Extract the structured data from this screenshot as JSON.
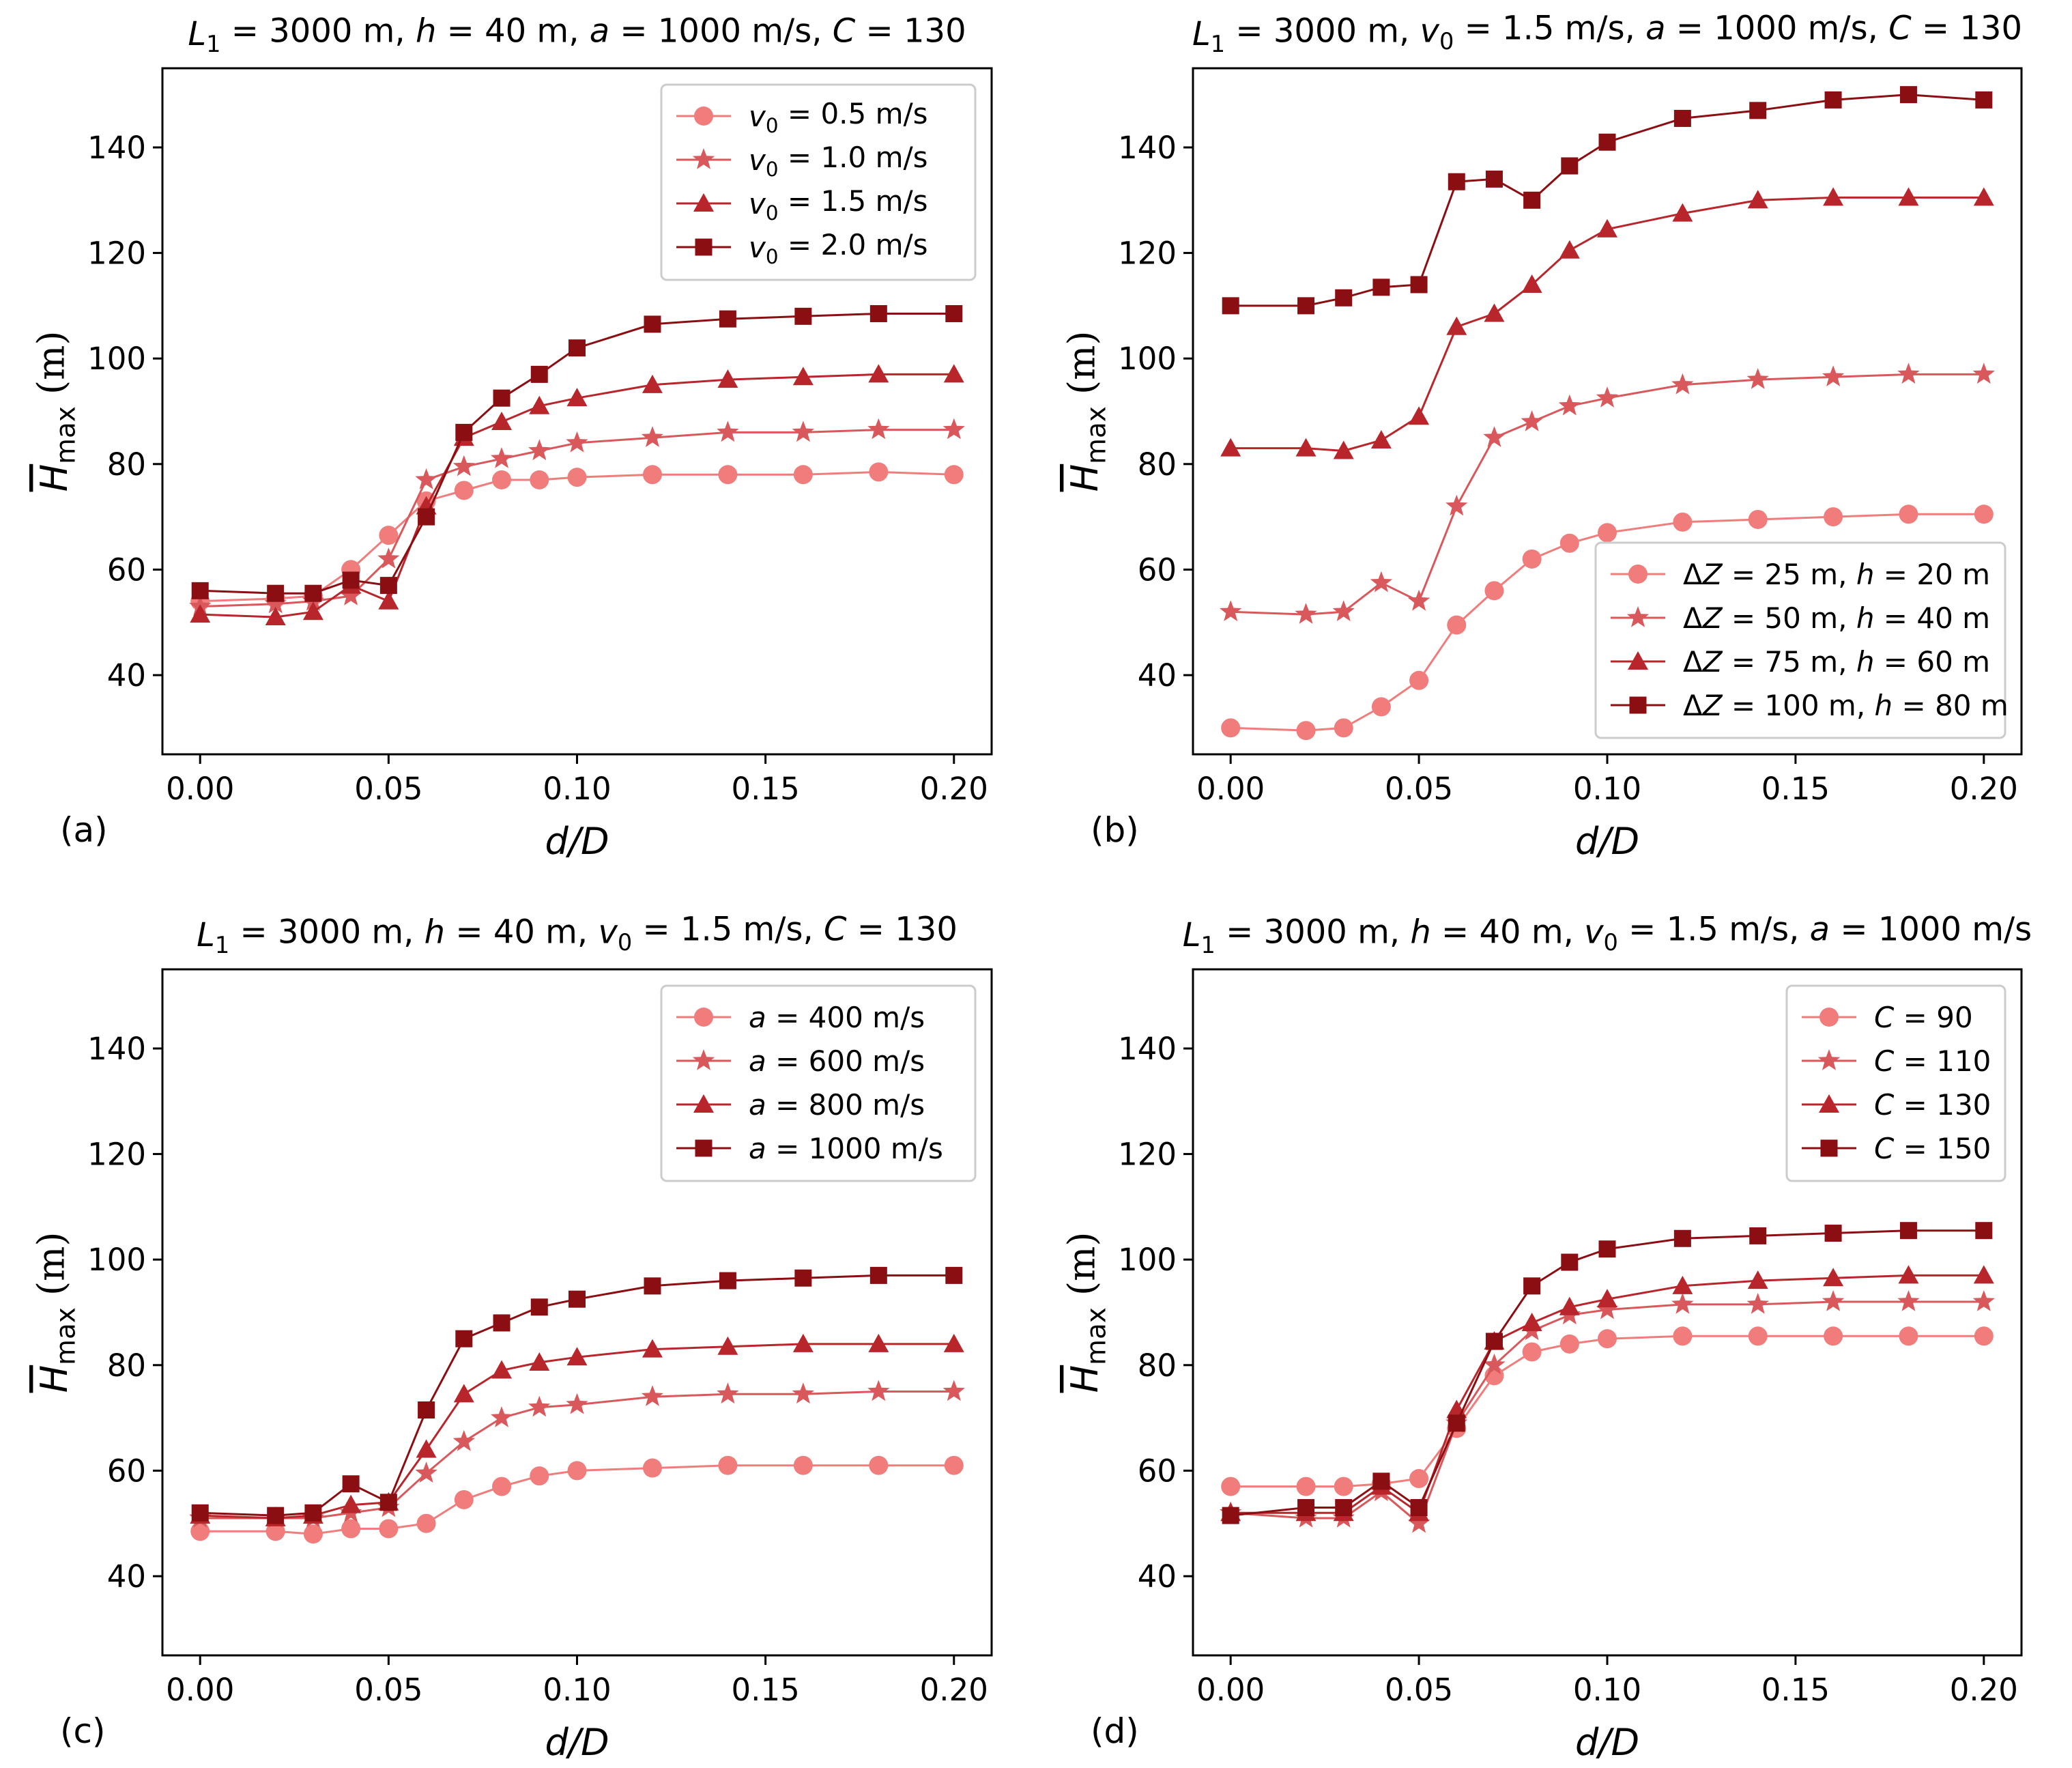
{
  "figure": {
    "colors": {
      "c0": "#f07c7c",
      "c1": "#d9585c",
      "c2": "#b8262b",
      "c3": "#8b0e12",
      "axes": "#000000"
    },
    "marker_names": [
      "circle",
      "star",
      "triangle",
      "square"
    ]
  },
  "chart_data": [
    {
      "type": "line",
      "panel_label": "(a)",
      "title": "L₁ = 3000 m, h = 40 m, a = 1000 m/s, C = 130",
      "xlabel": "d/D",
      "ylabel": "H̄max (m)",
      "xlim": [
        -0.01,
        0.21
      ],
      "ylim": [
        25,
        155
      ],
      "xticks": [
        "0.00",
        "0.05",
        "0.10",
        "0.15",
        "0.20"
      ],
      "yticks": [
        "40",
        "60",
        "80",
        "100",
        "120",
        "140"
      ],
      "legend_position": "upper-right",
      "grid": false,
      "x": [
        0.0,
        0.02,
        0.03,
        0.04,
        0.05,
        0.06,
        0.07,
        0.08,
        0.09,
        0.1,
        0.12,
        0.14,
        0.16,
        0.18,
        0.2
      ],
      "series": [
        {
          "name": "v₀ = 0.5 m/s",
          "marker": "circle",
          "values": [
            54.0,
            54.5,
            55.0,
            60.0,
            66.5,
            73.0,
            75.0,
            77.0,
            77.0,
            77.5,
            78.0,
            78.0,
            78.0,
            78.5,
            78.0
          ]
        },
        {
          "name": "v₀ = 1.0 m/s",
          "marker": "star",
          "values": [
            53.0,
            53.5,
            54.0,
            55.0,
            62.0,
            77.0,
            79.5,
            81.0,
            82.5,
            84.0,
            85.0,
            86.0,
            86.0,
            86.5,
            86.5
          ]
        },
        {
          "name": "v₀ = 1.5 m/s",
          "marker": "triangle",
          "values": [
            51.5,
            51.0,
            52.0,
            57.0,
            54.0,
            72.0,
            85.0,
            88.0,
            91.0,
            92.5,
            95.0,
            96.0,
            96.5,
            97.0,
            97.0
          ]
        },
        {
          "name": "v₀ = 2.0 m/s",
          "marker": "square",
          "values": [
            56.0,
            55.5,
            55.5,
            58.0,
            57.0,
            70.0,
            86.0,
            92.5,
            97.0,
            102.0,
            106.5,
            107.5,
            108.0,
            108.5,
            108.5
          ]
        }
      ]
    },
    {
      "type": "line",
      "panel_label": "(b)",
      "title": "L₁ = 3000 m, v₀ = 1.5 m/s, a = 1000 m/s, C = 130",
      "xlabel": "d/D",
      "ylabel": "H̄max (m)",
      "xlim": [
        -0.01,
        0.21
      ],
      "ylim": [
        25,
        155
      ],
      "xticks": [
        "0.00",
        "0.05",
        "0.10",
        "0.15",
        "0.20"
      ],
      "yticks": [
        "40",
        "60",
        "80",
        "100",
        "120",
        "140"
      ],
      "legend_position": "lower-right",
      "grid": false,
      "x": [
        0.0,
        0.02,
        0.03,
        0.04,
        0.05,
        0.06,
        0.07,
        0.08,
        0.09,
        0.1,
        0.12,
        0.14,
        0.16,
        0.18,
        0.2
      ],
      "series": [
        {
          "name": "ΔZ = 25 m, h = 20 m",
          "marker": "circle",
          "values": [
            30.0,
            29.5,
            30.0,
            34.0,
            39.0,
            49.5,
            56.0,
            62.0,
            65.0,
            67.0,
            69.0,
            69.5,
            70.0,
            70.5,
            70.5
          ]
        },
        {
          "name": "ΔZ = 50 m, h = 40 m",
          "marker": "star",
          "values": [
            52.0,
            51.5,
            52.0,
            57.5,
            54.0,
            72.0,
            85.0,
            88.0,
            91.0,
            92.5,
            95.0,
            96.0,
            96.5,
            97.0,
            97.0
          ]
        },
        {
          "name": "ΔZ = 75 m, h = 60 m",
          "marker": "triangle",
          "values": [
            83.0,
            83.0,
            82.5,
            84.5,
            89.0,
            106.0,
            108.5,
            114.0,
            120.5,
            124.5,
            127.5,
            130.0,
            130.5,
            130.5,
            130.5
          ]
        },
        {
          "name": "ΔZ = 100 m, h = 80 m",
          "marker": "square",
          "values": [
            110.0,
            110.0,
            111.5,
            113.5,
            114.0,
            133.5,
            134.0,
            130.0,
            136.5,
            141.0,
            145.5,
            147.0,
            149.0,
            150.0,
            149.0
          ]
        }
      ]
    },
    {
      "type": "line",
      "panel_label": "(c)",
      "title": "L₁ = 3000 m, h = 40 m, v₀ = 1.5 m/s, C = 130",
      "xlabel": "d/D",
      "ylabel": "H̄max (m)",
      "xlim": [
        -0.01,
        0.21
      ],
      "ylim": [
        25,
        155
      ],
      "xticks": [
        "0.00",
        "0.05",
        "0.10",
        "0.15",
        "0.20"
      ],
      "yticks": [
        "40",
        "60",
        "80",
        "100",
        "120",
        "140"
      ],
      "legend_position": "upper-right",
      "grid": false,
      "x": [
        0.0,
        0.02,
        0.03,
        0.04,
        0.05,
        0.06,
        0.07,
        0.08,
        0.09,
        0.1,
        0.12,
        0.14,
        0.16,
        0.18,
        0.2
      ],
      "series": [
        {
          "name": "a = 400 m/s",
          "marker": "circle",
          "values": [
            48.5,
            48.5,
            48.0,
            49.0,
            49.0,
            50.0,
            54.5,
            57.0,
            59.0,
            60.0,
            60.5,
            61.0,
            61.0,
            61.0,
            61.0
          ]
        },
        {
          "name": "a = 600 m/s",
          "marker": "star",
          "values": [
            51.0,
            51.0,
            51.0,
            52.0,
            53.0,
            59.5,
            65.5,
            70.0,
            72.0,
            72.5,
            74.0,
            74.5,
            74.5,
            75.0,
            75.0
          ]
        },
        {
          "name": "a = 800 m/s",
          "marker": "triangle",
          "values": [
            51.5,
            51.0,
            51.5,
            53.5,
            54.0,
            64.0,
            74.5,
            79.0,
            80.5,
            81.5,
            83.0,
            83.5,
            84.0,
            84.0,
            84.0
          ]
        },
        {
          "name": "a = 1000 m/s",
          "marker": "square",
          "values": [
            52.0,
            51.5,
            52.0,
            57.5,
            54.0,
            71.5,
            85.0,
            88.0,
            91.0,
            92.5,
            95.0,
            96.0,
            96.5,
            97.0,
            97.0
          ]
        }
      ]
    },
    {
      "type": "line",
      "panel_label": "(d)",
      "title": "L₁ = 3000 m, h = 40 m, v₀ = 1.5 m/s, a = 1000 m/s",
      "xlabel": "d/D",
      "ylabel": "H̄max (m)",
      "xlim": [
        -0.01,
        0.21
      ],
      "ylim": [
        25,
        155
      ],
      "xticks": [
        "0.00",
        "0.05",
        "0.10",
        "0.15",
        "0.20"
      ],
      "yticks": [
        "40",
        "60",
        "80",
        "100",
        "120",
        "140"
      ],
      "legend_position": "upper-right",
      "grid": false,
      "x": [
        0.0,
        0.02,
        0.03,
        0.04,
        0.05,
        0.06,
        0.07,
        0.08,
        0.09,
        0.1,
        0.12,
        0.14,
        0.16,
        0.18,
        0.2
      ],
      "series": [
        {
          "name": "C = 90",
          "marker": "circle",
          "values": [
            57.0,
            57.0,
            57.0,
            57.5,
            58.5,
            68.0,
            78.0,
            82.5,
            84.0,
            85.0,
            85.5,
            85.5,
            85.5,
            85.5,
            85.5
          ]
        },
        {
          "name": "C = 110",
          "marker": "star",
          "values": [
            52.0,
            51.0,
            51.0,
            56.0,
            50.0,
            69.0,
            80.0,
            86.5,
            89.5,
            90.5,
            91.5,
            91.5,
            92.0,
            92.0,
            92.0
          ]
        },
        {
          "name": "C = 130",
          "marker": "triangle",
          "values": [
            52.0,
            52.0,
            52.0,
            57.0,
            52.0,
            71.5,
            84.5,
            88.0,
            91.0,
            92.5,
            95.0,
            96.0,
            96.5,
            97.0,
            97.0
          ]
        },
        {
          "name": "C = 150",
          "marker": "square",
          "values": [
            51.5,
            53.0,
            53.0,
            58.0,
            53.0,
            69.0,
            84.5,
            95.0,
            99.5,
            102.0,
            104.0,
            104.5,
            105.0,
            105.5,
            105.5
          ]
        }
      ]
    }
  ]
}
